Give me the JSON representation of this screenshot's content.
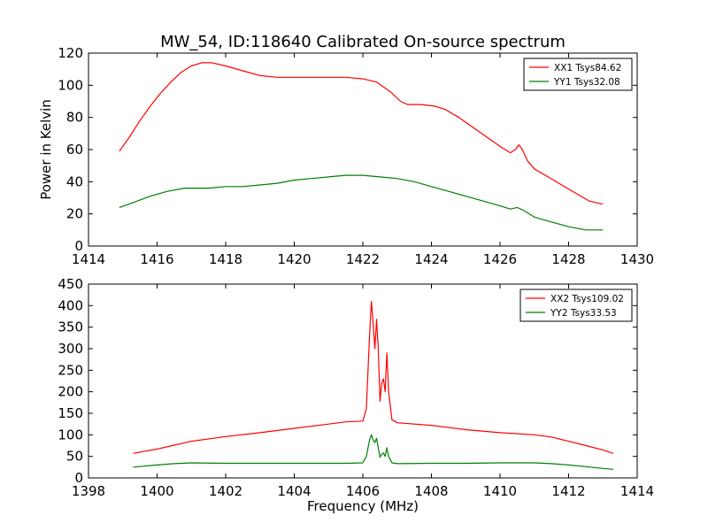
{
  "figure": {
    "title": "MW_54, ID:118640 Calibrated On-source spectrum",
    "ylabel": "Power in Kelvin",
    "xlabel": "Frequency (MHz)"
  },
  "colors": {
    "xx": "#ff0000",
    "yy": "#008000",
    "axes": "#000000",
    "background": "#ffffff"
  },
  "chart_data": [
    {
      "type": "line",
      "xlim": [
        1414,
        1430
      ],
      "ylim": [
        0,
        120
      ],
      "xticks": [
        1414,
        1416,
        1418,
        1420,
        1422,
        1424,
        1426,
        1428,
        1430
      ],
      "yticks": [
        0,
        20,
        40,
        60,
        80,
        100,
        120
      ],
      "legend_position": "top-right",
      "series": [
        {
          "name": "XX1 Tsys84.62",
          "color": "#ff0000",
          "points": [
            [
              1414.9,
              59
            ],
            [
              1415.2,
              68
            ],
            [
              1415.5,
              78
            ],
            [
              1415.8,
              87
            ],
            [
              1416.1,
              95
            ],
            [
              1416.4,
              102
            ],
            [
              1416.7,
              108
            ],
            [
              1417.0,
              112
            ],
            [
              1417.3,
              114
            ],
            [
              1417.6,
              114
            ],
            [
              1418.0,
              112
            ],
            [
              1418.5,
              109
            ],
            [
              1419.0,
              106
            ],
            [
              1419.5,
              105
            ],
            [
              1420.0,
              105
            ],
            [
              1420.5,
              105
            ],
            [
              1421.0,
              105
            ],
            [
              1421.5,
              105
            ],
            [
              1422.0,
              104
            ],
            [
              1422.4,
              102
            ],
            [
              1422.8,
              96
            ],
            [
              1423.1,
              90
            ],
            [
              1423.3,
              88
            ],
            [
              1423.7,
              88
            ],
            [
              1424.1,
              87
            ],
            [
              1424.4,
              85
            ],
            [
              1424.8,
              80
            ],
            [
              1425.2,
              74
            ],
            [
              1425.6,
              68
            ],
            [
              1426.0,
              62
            ],
            [
              1426.3,
              58
            ],
            [
              1426.45,
              60
            ],
            [
              1426.55,
              63
            ],
            [
              1426.65,
              60
            ],
            [
              1426.8,
              53
            ],
            [
              1427.0,
              48
            ],
            [
              1427.4,
              43
            ],
            [
              1427.8,
              38
            ],
            [
              1428.2,
              33
            ],
            [
              1428.6,
              28
            ],
            [
              1429.0,
              26
            ]
          ]
        },
        {
          "name": "YY1 Tsys32.08",
          "color": "#008000",
          "points": [
            [
              1414.9,
              24
            ],
            [
              1415.3,
              27
            ],
            [
              1415.8,
              31
            ],
            [
              1416.3,
              34
            ],
            [
              1416.8,
              36
            ],
            [
              1417.5,
              36
            ],
            [
              1418.0,
              37
            ],
            [
              1418.5,
              37
            ],
            [
              1419.0,
              38
            ],
            [
              1419.5,
              39
            ],
            [
              1420.0,
              41
            ],
            [
              1420.5,
              42
            ],
            [
              1421.0,
              43
            ],
            [
              1421.5,
              44
            ],
            [
              1422.0,
              44
            ],
            [
              1422.5,
              43
            ],
            [
              1423.0,
              42
            ],
            [
              1423.5,
              40
            ],
            [
              1424.0,
              37
            ],
            [
              1424.5,
              34
            ],
            [
              1425.0,
              31
            ],
            [
              1425.5,
              28
            ],
            [
              1426.0,
              25
            ],
            [
              1426.3,
              23
            ],
            [
              1426.5,
              24
            ],
            [
              1426.7,
              22
            ],
            [
              1427.0,
              18
            ],
            [
              1427.5,
              15
            ],
            [
              1428.0,
              12
            ],
            [
              1428.5,
              10
            ],
            [
              1429.0,
              10
            ]
          ]
        }
      ]
    },
    {
      "type": "line",
      "xlim": [
        1398,
        1414
      ],
      "ylim": [
        0,
        450
      ],
      "xticks": [
        1398,
        1400,
        1402,
        1404,
        1406,
        1408,
        1410,
        1412,
        1414
      ],
      "yticks": [
        0,
        50,
        100,
        150,
        200,
        250,
        300,
        350,
        400,
        450
      ],
      "legend_position": "top-right",
      "series": [
        {
          "name": "XX2 Tsys109.02",
          "color": "#ff0000",
          "points": [
            [
              1399.3,
              57
            ],
            [
              1400.0,
              67
            ],
            [
              1400.5,
              76
            ],
            [
              1401.0,
              85
            ],
            [
              1402.0,
              96
            ],
            [
              1403.0,
              105
            ],
            [
              1404.0,
              115
            ],
            [
              1405.0,
              125
            ],
            [
              1405.5,
              130
            ],
            [
              1406.0,
              132
            ],
            [
              1406.1,
              160
            ],
            [
              1406.2,
              340
            ],
            [
              1406.25,
              410
            ],
            [
              1406.3,
              360
            ],
            [
              1406.35,
              300
            ],
            [
              1406.4,
              368
            ],
            [
              1406.45,
              300
            ],
            [
              1406.5,
              178
            ],
            [
              1406.55,
              220
            ],
            [
              1406.6,
              230
            ],
            [
              1406.65,
              200
            ],
            [
              1406.7,
              290
            ],
            [
              1406.75,
              200
            ],
            [
              1406.85,
              135
            ],
            [
              1407.0,
              128
            ],
            [
              1408.0,
              122
            ],
            [
              1409.0,
              112
            ],
            [
              1410.0,
              105
            ],
            [
              1411.0,
              100
            ],
            [
              1411.5,
              95
            ],
            [
              1412.0,
              85
            ],
            [
              1412.5,
              75
            ],
            [
              1413.0,
              65
            ],
            [
              1413.3,
              57
            ]
          ]
        },
        {
          "name": "YY2 Tsys33.53",
          "color": "#008000",
          "points": [
            [
              1399.3,
              25
            ],
            [
              1400.0,
              30
            ],
            [
              1400.5,
              33
            ],
            [
              1401.0,
              35
            ],
            [
              1402.0,
              34
            ],
            [
              1403.0,
              34
            ],
            [
              1404.0,
              34
            ],
            [
              1405.0,
              34
            ],
            [
              1405.5,
              34
            ],
            [
              1406.0,
              35
            ],
            [
              1406.1,
              50
            ],
            [
              1406.2,
              90
            ],
            [
              1406.25,
              100
            ],
            [
              1406.3,
              88
            ],
            [
              1406.35,
              82
            ],
            [
              1406.4,
              92
            ],
            [
              1406.45,
              70
            ],
            [
              1406.5,
              48
            ],
            [
              1406.55,
              55
            ],
            [
              1406.6,
              58
            ],
            [
              1406.65,
              50
            ],
            [
              1406.7,
              70
            ],
            [
              1406.75,
              50
            ],
            [
              1406.85,
              35
            ],
            [
              1407.0,
              33
            ],
            [
              1408.0,
              34
            ],
            [
              1409.0,
              34
            ],
            [
              1410.0,
              35
            ],
            [
              1411.0,
              35
            ],
            [
              1411.5,
              33
            ],
            [
              1412.0,
              30
            ],
            [
              1412.5,
              26
            ],
            [
              1413.0,
              22
            ],
            [
              1413.3,
              20
            ]
          ]
        }
      ]
    }
  ]
}
